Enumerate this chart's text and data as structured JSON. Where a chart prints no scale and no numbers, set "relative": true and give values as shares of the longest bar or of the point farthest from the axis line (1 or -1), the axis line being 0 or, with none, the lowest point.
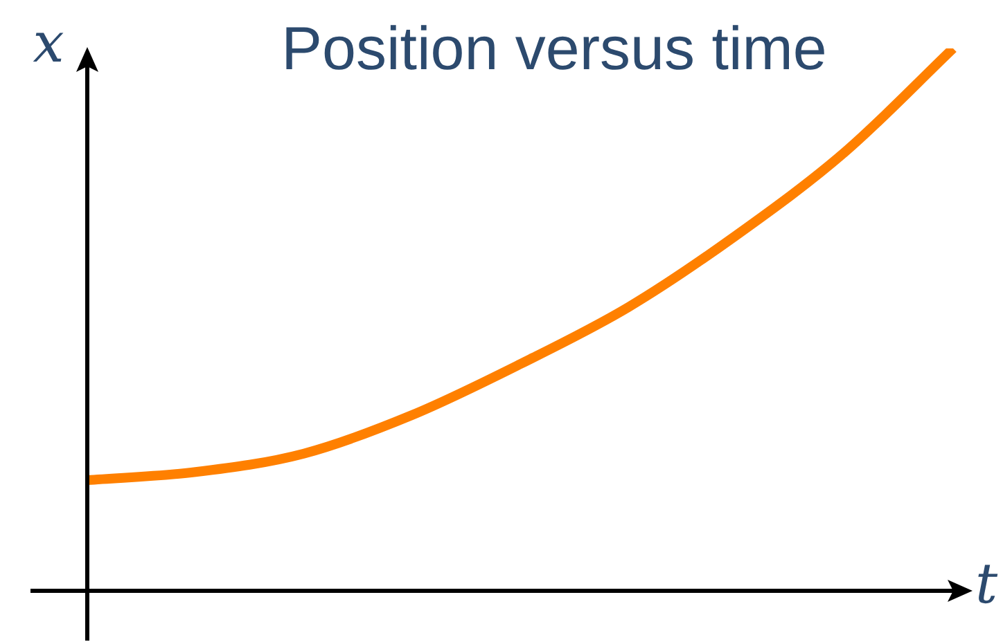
{
  "chart_data": {
    "type": "line",
    "title": "Position versus time",
    "xlabel": "t",
    "ylabel": "x",
    "categories": [
      null,
      null,
      null,
      null,
      null,
      null,
      null,
      null,
      null
    ],
    "values": [
      0.204,
      0.219,
      0.253,
      0.324,
      0.418,
      0.523,
      0.656,
      0.809,
      1
    ],
    "color": "#ff8000",
    "relative": true,
    "legend": false,
    "marker": "none"
  }
}
